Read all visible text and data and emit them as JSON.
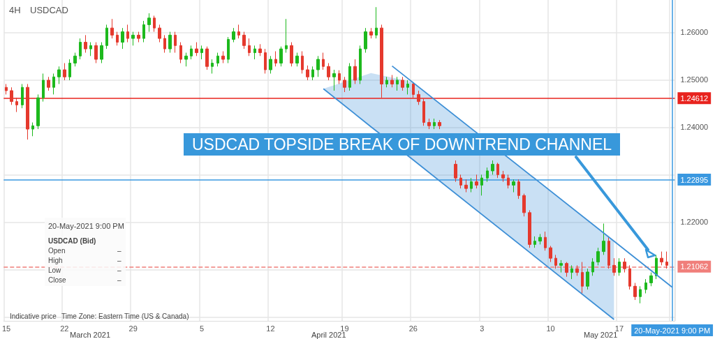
{
  "chart_data": {
    "type": "candlestick",
    "title": "USDCAD",
    "subtitle": "4H",
    "annotations": [
      "USDCAD TOPSIDE BREAK OF DOWNTREND CHANNEL",
      "20-May-2021 9:00 PM",
      "USDCAD (Bid)",
      "Open",
      "–",
      "High",
      "–",
      "Low",
      "–",
      "Close",
      "–",
      "Indicative price",
      "Time Zone: Eastern Time (US & Canada)",
      "March 2021",
      "April 2021",
      "May 2021"
    ],
    "categories": [
      "15",
      null,
      null,
      null,
      null,
      null,
      null,
      null,
      null,
      null,
      null,
      "22",
      null,
      null,
      null,
      null,
      null,
      null,
      null,
      null,
      null,
      null,
      null,
      null,
      "29",
      null,
      null,
      null,
      null,
      null,
      null,
      null,
      null,
      null,
      null,
      null,
      null,
      "5",
      null,
      null,
      null,
      null,
      null,
      null,
      null,
      null,
      null,
      null,
      null,
      null,
      "12",
      null,
      null,
      null,
      null,
      null,
      null,
      null,
      null,
      null,
      null,
      null,
      null,
      null,
      "19",
      null,
      null,
      null,
      null,
      null,
      null,
      null,
      null,
      null,
      null,
      null,
      null,
      "26",
      null,
      null,
      null,
      null,
      null,
      null,
      null,
      null,
      null,
      null,
      null,
      null,
      "3",
      null,
      null,
      null,
      null,
      null,
      null,
      null,
      null,
      null,
      null,
      null,
      null,
      "10",
      null,
      null,
      null,
      null,
      null,
      null,
      null,
      null,
      null,
      null,
      null,
      null,
      "17",
      null,
      null,
      null,
      null,
      null,
      null,
      null,
      null,
      null,
      "20-May-2021 9:00 PM"
    ],
    "ylim": [
      1.1992,
      1.2668
    ],
    "yticks": [
      {
        "value": 1.2,
        "label": null
      },
      {
        "value": 1.21,
        "label": null
      },
      {
        "value": 1.22,
        "label": "1.22000"
      },
      {
        "value": 1.23,
        "label": null
      },
      {
        "value": 1.24,
        "label": "1.24000"
      },
      {
        "value": 1.25,
        "label": "1.25000"
      },
      {
        "value": 1.26,
        "label": "1.26000"
      }
    ],
    "grid": true,
    "ref_lines": [
      {
        "axis": "y",
        "value": 1.24612,
        "label": "1.24612",
        "color": "#e8231e"
      },
      {
        "axis": "y",
        "value": 1.22895,
        "label": "1.22895",
        "color": "#3a98e0"
      },
      {
        "axis": "y",
        "value": 1.21062,
        "label": "1.21062",
        "color": "#f07f7b",
        "line_style": "dashed"
      },
      {
        "axis": "x",
        "value": "20-May-2021 9:00 PM",
        "label": null,
        "color": "#3a98e0"
      }
    ],
    "series": [
      {
        "type": "line",
        "color": "#3d8fd6",
        "values": [
          null,
          null,
          null,
          null,
          null,
          null,
          null,
          null,
          null,
          null,
          null,
          null,
          null,
          null,
          null,
          null,
          null,
          null,
          null,
          null,
          null,
          null,
          null,
          null,
          null,
          null,
          null,
          null,
          null,
          null,
          null,
          null,
          null,
          null,
          null,
          null,
          null,
          null,
          null,
          null,
          null,
          null,
          null,
          null,
          null,
          null,
          null,
          null,
          null,
          null,
          null,
          null,
          null,
          null,
          null,
          null,
          null,
          null,
          null,
          null,
          null,
          null,
          null,
          null,
          null,
          null,
          null,
          null,
          null,
          null,
          null,
          null,
          null,
          1.2529,
          null,
          null,
          null,
          null,
          null,
          null,
          null,
          null,
          null,
          null,
          null,
          null,
          null,
          null,
          null,
          null,
          null,
          null,
          null,
          null,
          null,
          null,
          null,
          null,
          null,
          null,
          null,
          null,
          null,
          null,
          null,
          null,
          null,
          null,
          null,
          null,
          null,
          null,
          null,
          null,
          null,
          1.216,
          null,
          null,
          null,
          null,
          null,
          null,
          null,
          null,
          null,
          null,
          1.2063
        ]
      },
      {
        "type": "line",
        "color": "#3d8fd6",
        "values": [
          null,
          null,
          null,
          null,
          null,
          null,
          null,
          null,
          null,
          null,
          null,
          null,
          null,
          null,
          null,
          null,
          null,
          null,
          null,
          null,
          null,
          null,
          null,
          null,
          null,
          null,
          null,
          null,
          null,
          null,
          null,
          null,
          null,
          null,
          null,
          null,
          null,
          null,
          null,
          null,
          null,
          null,
          null,
          null,
          null,
          null,
          null,
          null,
          null,
          null,
          null,
          null,
          null,
          null,
          null,
          null,
          null,
          null,
          null,
          null,
          1.2481,
          null,
          null,
          null,
          null,
          null,
          null,
          null,
          null,
          1.2401,
          null,
          null,
          null,
          null,
          null,
          null,
          null,
          1.2331,
          null,
          null,
          null,
          null,
          null,
          null,
          null,
          null,
          null,
          null,
          null,
          null,
          null,
          null,
          null,
          null,
          null,
          null,
          null,
          null,
          null,
          null,
          null,
          null,
          null,
          null,
          null,
          null,
          null,
          null,
          null,
          null,
          null,
          null,
          null,
          null,
          null,
          1.1995,
          null,
          null,
          null,
          null,
          null,
          null,
          null,
          null,
          null,
          null,
          null
        ],
        "lower": [
          null,
          null,
          null,
          null,
          null,
          null,
          null,
          null,
          null,
          null,
          null,
          null,
          null,
          null,
          null,
          null,
          null,
          null,
          null,
          null,
          null,
          null,
          null,
          null,
          null,
          null,
          null,
          null,
          null,
          null,
          null,
          null,
          null,
          null,
          null,
          null,
          null,
          null,
          null,
          null,
          null,
          null,
          null,
          null,
          null,
          null,
          null,
          null,
          null,
          null,
          null,
          null,
          null,
          null,
          null,
          null,
          null,
          null,
          null,
          null,
          1.2481,
          null,
          null,
          null,
          null,
          null,
          null,
          null,
          null,
          1.2401,
          null,
          null,
          null,
          null,
          null,
          null,
          null,
          1.2331,
          null,
          null,
          null,
          null,
          null,
          null,
          null,
          null,
          null,
          null,
          null,
          null,
          null,
          null,
          null,
          null,
          null,
          null,
          null,
          null,
          null,
          null,
          null,
          null,
          null,
          null,
          null,
          null,
          null,
          null,
          null,
          null,
          null,
          null,
          null,
          null,
          null,
          1.1995,
          null,
          null,
          null,
          null,
          null,
          null,
          null,
          null,
          null,
          null,
          null
        ],
        "upper": [
          null,
          null,
          null,
          null,
          null,
          null,
          null,
          null,
          null,
          null,
          null,
          null,
          null,
          null,
          null,
          null,
          null,
          null,
          null,
          null,
          null,
          null,
          null,
          null,
          null,
          null,
          null,
          null,
          null,
          null,
          null,
          null,
          null,
          null,
          null,
          null,
          null,
          null,
          null,
          null,
          null,
          null,
          null,
          null,
          null,
          null,
          null,
          null,
          null,
          null,
          null,
          null,
          null,
          null,
          null,
          null,
          null,
          null,
          null,
          null,
          1.2481,
          null,
          null,
          null,
          null,
          null,
          null,
          null,
          null,
          1.2514,
          null,
          null,
          null,
          null,
          null,
          null,
          null,
          1.2495,
          null,
          null,
          null,
          null,
          null,
          null,
          null,
          null,
          null,
          null,
          null,
          null,
          null,
          null,
          null,
          null,
          null,
          null,
          null,
          null,
          null,
          null,
          null,
          null,
          null,
          null,
          null,
          null,
          null,
          null,
          null,
          null,
          null,
          null,
          null,
          null,
          null,
          1.216,
          null,
          null,
          null,
          null,
          null,
          null,
          null,
          null,
          null,
          null,
          null
        ]
      },
      {
        "colors": [
          "#e5392d",
          "#e5392d",
          "#e5392d",
          "#1db91d",
          "#e5392d",
          "#1db91d",
          "#1db91d",
          "#1db91d",
          "#e5392d",
          "#1db91d",
          "#1db91d",
          "#e5392d",
          "#1db91d",
          "#1db91d",
          "#1db91d",
          "#e5392d",
          "#1db91d",
          "#e5392d",
          "#1db91d",
          "#1db91d",
          "#e5392d",
          "#e5392d",
          "#1db91d",
          "#e5392d",
          "#1db91d",
          "#e5392d",
          "#1db91d",
          "#1db91d",
          "#e5392d",
          "#e5392d",
          "#e5392d",
          "#1db91d",
          "#e5392d",
          "#e5392d",
          "#1db91d",
          "#1db91d",
          "#e5392d",
          "#1db91d",
          "#e5392d",
          "#1db91d",
          "#1db91d",
          "#e5392d",
          "#1db91d",
          "#1db91d",
          "#e5392d",
          "#e5392d",
          "#e5392d",
          "#1db91d",
          "#e5392d",
          "#e5392d",
          "#1db91d",
          "#e5392d",
          "#1db91d",
          "#1db91d",
          "#e5392d",
          "#1db91d",
          "#e5392d",
          "#e5392d",
          "#1db91d",
          "#1db91d",
          "#e5392d",
          "#e5392d",
          "#1db91d",
          "#e5392d",
          "#e5392d",
          "#1db91d",
          "#e5392d",
          "#1db91d",
          "#1db91d",
          "#e5392d",
          "#1db91d",
          "#e5392d",
          "#1db91d",
          "#e5392d",
          "#1db91d",
          "#e5392d",
          "#1db91d",
          "#e5392d",
          "#e5392d",
          "#e5392d",
          "#e5392d",
          "#1db91d",
          "#e5392d",
          null,
          null,
          "#e5392d",
          "#e5392d",
          "#e5392d",
          "#1db91d",
          "#e5392d",
          "#1db91d",
          "#1db91d",
          "#1db91d",
          "#e5392d",
          "#e5392d",
          "#e5392d",
          "#1db91d",
          "#e5392d",
          "#e5392d",
          "#e5392d",
          "#1db91d",
          "#1db91d",
          "#e5392d",
          "#e5392d",
          "#e5392d",
          "#1db91d",
          "#e5392d",
          "#1db91d",
          "#e5392d",
          "#e5392d",
          "#1db91d",
          "#1db91d",
          "#1db91d",
          "#1db91d",
          "#e5392d",
          "#e5392d",
          "#1db91d",
          "#e5392d",
          "#e5392d",
          "#e5392d",
          "#1db91d",
          "#1db91d",
          "#1db91d",
          "#1db91d",
          "#e5392d",
          "#e5392d",
          null
        ],
        "ohlc": [
          [
            1.2484,
            1.2491,
            1.2469,
            1.2477
          ],
          [
            1.2477,
            1.2484,
            1.2447,
            1.2454
          ],
          [
            1.2454,
            1.2462,
            1.2432,
            1.2447
          ],
          [
            1.2447,
            1.2491,
            1.244,
            1.2484
          ],
          [
            1.2484,
            1.2491,
            1.2374,
            1.2396
          ],
          [
            1.2396,
            1.241,
            1.2381,
            1.2403
          ],
          [
            1.2403,
            1.2469,
            1.2396,
            1.2462
          ],
          [
            1.2462,
            1.2513,
            1.2454,
            1.2499
          ],
          [
            1.2499,
            1.2506,
            1.2477,
            1.2484
          ],
          [
            1.2484,
            1.2513,
            1.2469,
            1.2506
          ],
          [
            1.2506,
            1.2528,
            1.2491,
            1.2521
          ],
          [
            1.2521,
            1.2535,
            1.2499,
            1.2506
          ],
          [
            1.2506,
            1.2543,
            1.2499,
            1.2535
          ],
          [
            1.2535,
            1.2557,
            1.2528,
            1.255
          ],
          [
            1.255,
            1.2587,
            1.2543,
            1.2579
          ],
          [
            1.2579,
            1.2594,
            1.2557,
            1.2565
          ],
          [
            1.2565,
            1.2579,
            1.255,
            1.2572
          ],
          [
            1.2572,
            1.2579,
            1.2535,
            1.2543
          ],
          [
            1.2543,
            1.2579,
            1.2535,
            1.2572
          ],
          [
            1.2572,
            1.2616,
            1.2565,
            1.2609
          ],
          [
            1.2609,
            1.2628,
            1.2587,
            1.2594
          ],
          [
            1.2594,
            1.2601,
            1.2572,
            1.2579
          ],
          [
            1.2579,
            1.2609,
            1.2565,
            1.2601
          ],
          [
            1.2601,
            1.2616,
            1.2579,
            1.2587
          ],
          [
            1.2587,
            1.2601,
            1.2572,
            1.2594
          ],
          [
            1.2594,
            1.2601,
            1.2579,
            1.2587
          ],
          [
            1.2587,
            1.2624,
            1.2579,
            1.2616
          ],
          [
            1.2616,
            1.264,
            1.2601,
            1.263
          ],
          [
            1.263,
            1.2635,
            1.2601,
            1.2609
          ],
          [
            1.2609,
            1.2616,
            1.2579,
            1.2587
          ],
          [
            1.2587,
            1.2594,
            1.2557,
            1.2565
          ],
          [
            1.2565,
            1.2601,
            1.2557,
            1.2594
          ],
          [
            1.2594,
            1.2601,
            1.2557,
            1.2572
          ],
          [
            1.2572,
            1.2579,
            1.2535,
            1.2543
          ],
          [
            1.2543,
            1.2557,
            1.2528,
            1.255
          ],
          [
            1.255,
            1.2572,
            1.2543,
            1.2565
          ],
          [
            1.2565,
            1.2579,
            1.255,
            1.2557
          ],
          [
            1.2557,
            1.2572,
            1.2543,
            1.2565
          ],
          [
            1.2565,
            1.257,
            1.2521,
            1.2528
          ],
          [
            1.2528,
            1.2543,
            1.2513,
            1.2535
          ],
          [
            1.2535,
            1.2557,
            1.2528,
            1.255
          ],
          [
            1.255,
            1.256,
            1.2535,
            1.2543
          ],
          [
            1.2543,
            1.259,
            1.2535,
            1.2585
          ],
          [
            1.2585,
            1.2609,
            1.2579,
            1.2601
          ],
          [
            1.2601,
            1.2616,
            1.2587,
            1.2594
          ],
          [
            1.2594,
            1.2601,
            1.2565,
            1.2572
          ],
          [
            1.2572,
            1.2587,
            1.255,
            1.2557
          ],
          [
            1.2557,
            1.2572,
            1.2543,
            1.2565
          ],
          [
            1.2565,
            1.2575,
            1.255,
            1.2557
          ],
          [
            1.2557,
            1.2565,
            1.2513,
            1.2521
          ],
          [
            1.2521,
            1.255,
            1.2513,
            1.2543
          ],
          [
            1.2543,
            1.256,
            1.2528,
            1.2535
          ],
          [
            1.2535,
            1.257,
            1.2528,
            1.2565
          ],
          [
            1.2565,
            1.2628,
            1.2557,
            1.2572
          ],
          [
            1.2572,
            1.2579,
            1.2528,
            1.2535
          ],
          [
            1.2535,
            1.2557,
            1.2528,
            1.255
          ],
          [
            1.255,
            1.256,
            1.2513,
            1.2521
          ],
          [
            1.2521,
            1.253,
            1.2499,
            1.2506
          ],
          [
            1.2506,
            1.2528,
            1.2499,
            1.2521
          ],
          [
            1.2521,
            1.255,
            1.2506,
            1.2543
          ],
          [
            1.2543,
            1.2557,
            1.2521,
            1.2528
          ],
          [
            1.2528,
            1.2535,
            1.2499,
            1.2506
          ],
          [
            1.2506,
            1.2521,
            1.2477,
            1.2513
          ],
          [
            1.2513,
            1.252,
            1.2491,
            1.2499
          ],
          [
            1.2499,
            1.2506,
            1.2474,
            1.2484
          ],
          [
            1.2484,
            1.2535,
            1.2477,
            1.2528
          ],
          [
            1.2528,
            1.2543,
            1.2491,
            1.2499
          ],
          [
            1.2499,
            1.2572,
            1.2491,
            1.2565
          ],
          [
            1.2565,
            1.2609,
            1.2557,
            1.2601
          ],
          [
            1.2601,
            1.2609,
            1.2587,
            1.2594
          ],
          [
            1.2594,
            1.2653,
            1.2587,
            1.2609
          ],
          [
            1.2609,
            1.2616,
            1.2462,
            1.2491
          ],
          [
            1.2491,
            1.2506,
            1.2484,
            1.2499
          ],
          [
            1.2499,
            1.251,
            1.2484,
            1.2491
          ],
          [
            1.2491,
            1.2506,
            1.2477,
            1.2499
          ],
          [
            1.2499,
            1.2506,
            1.2477,
            1.2484
          ],
          [
            1.2484,
            1.2499,
            1.2469,
            1.2491
          ],
          [
            1.2491,
            1.2495,
            1.2462,
            1.2469
          ],
          [
            1.2469,
            1.2477,
            1.2447,
            1.2454
          ],
          [
            1.2454,
            1.246,
            1.2403,
            1.241
          ],
          [
            1.241,
            1.2418,
            1.2396,
            1.2403
          ],
          [
            1.2403,
            1.2418,
            1.2396,
            1.241
          ],
          [
            1.241,
            1.2415,
            1.2396,
            1.2403
          ],
          null,
          null,
          [
            1.2322,
            1.233,
            1.2285,
            1.2293
          ],
          [
            1.2293,
            1.23,
            1.2271,
            1.2278
          ],
          [
            1.2278,
            1.229,
            1.2263,
            1.2271
          ],
          [
            1.2271,
            1.2293,
            1.2263,
            1.2285
          ],
          [
            1.2285,
            1.23,
            1.2271,
            1.2278
          ],
          [
            1.2278,
            1.23,
            1.2256,
            1.2293
          ],
          [
            1.2293,
            1.2315,
            1.2285,
            1.2308
          ],
          [
            1.2308,
            1.233,
            1.23,
            1.2322
          ],
          [
            1.2322,
            1.2325,
            1.2293,
            1.23
          ],
          [
            1.23,
            1.2308,
            1.2285,
            1.2293
          ],
          [
            1.2293,
            1.23,
            1.2271,
            1.2278
          ],
          [
            1.2278,
            1.229,
            1.2263,
            1.2285
          ],
          [
            1.2285,
            1.229,
            1.2249,
            1.2256
          ],
          [
            1.2256,
            1.226,
            1.2212,
            1.222
          ],
          [
            1.222,
            1.2225,
            1.2146,
            1.2153
          ],
          [
            1.2153,
            1.217,
            1.2146,
            1.216
          ],
          [
            1.216,
            1.2175,
            1.2153,
            1.2168
          ],
          [
            1.2168,
            1.218,
            1.214,
            1.2146
          ],
          [
            1.2146,
            1.215,
            1.2116,
            1.2124
          ],
          [
            1.2124,
            1.2131,
            1.2102,
            1.2109
          ],
          [
            1.2109,
            1.212,
            1.2094,
            1.2113
          ],
          [
            1.2113,
            1.2116,
            1.2085,
            1.2094
          ],
          [
            1.2094,
            1.2109,
            1.208,
            1.2102
          ],
          [
            1.2102,
            1.2109,
            1.2087,
            1.2094
          ],
          [
            1.2094,
            1.2116,
            1.205,
            1.2065
          ],
          [
            1.2065,
            1.2102,
            1.2058,
            1.2095
          ],
          [
            1.2095,
            1.2124,
            1.2087,
            1.2116
          ],
          [
            1.2116,
            1.2146,
            1.2109,
            1.2138
          ],
          [
            1.2138,
            1.2197,
            1.2131,
            1.216
          ],
          [
            1.216,
            1.2168,
            1.2102,
            1.2109
          ],
          [
            1.2109,
            1.2124,
            1.2087,
            1.2094
          ],
          [
            1.2094,
            1.2124,
            1.2087,
            1.2116
          ],
          [
            1.2116,
            1.2124,
            1.2094,
            1.2102
          ],
          [
            1.2102,
            1.2109,
            1.2058,
            1.2065
          ],
          [
            1.2065,
            1.2072,
            1.2036,
            1.2043
          ],
          [
            1.2043,
            1.2065,
            1.2029,
            1.2058
          ],
          [
            1.2058,
            1.208,
            1.205,
            1.2072
          ],
          [
            1.2072,
            1.2094,
            1.2065,
            1.2087
          ],
          [
            1.2087,
            1.2131,
            1.208,
            1.2124
          ],
          [
            1.2124,
            1.2138,
            1.2109,
            1.2116
          ],
          [
            1.2116,
            1.2138,
            1.2102,
            1.2109
          ],
          null
        ]
      }
    ]
  }
}
